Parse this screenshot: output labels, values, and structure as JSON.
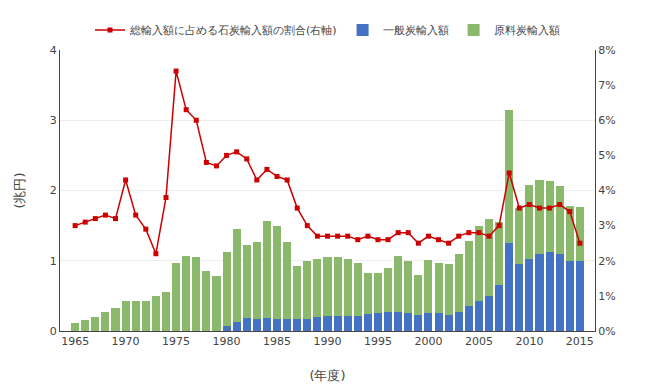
{
  "chart_data": {
    "type": "bar",
    "stacked": true,
    "xlabel": "(年度)",
    "ylabel": "(兆円)",
    "x": [
      1965,
      1966,
      1967,
      1968,
      1969,
      1970,
      1971,
      1972,
      1973,
      1974,
      1975,
      1976,
      1977,
      1978,
      1979,
      1980,
      1981,
      1982,
      1983,
      1984,
      1985,
      1986,
      1987,
      1988,
      1989,
      1990,
      1991,
      1992,
      1993,
      1994,
      1995,
      1996,
      1997,
      1998,
      1999,
      2000,
      2001,
      2002,
      2003,
      2004,
      2005,
      2006,
      2007,
      2008,
      2009,
      2010,
      2011,
      2012,
      2013,
      2014,
      2015
    ],
    "xlim": [
      1963.5,
      2016.5
    ],
    "xticks": [
      1965,
      1970,
      1975,
      1980,
      1985,
      1990,
      1995,
      2000,
      2005,
      2010,
      2015
    ],
    "ylim": [
      0,
      4
    ],
    "yticks": [
      0,
      1,
      2,
      3,
      4
    ],
    "y2lim": [
      0,
      8
    ],
    "y2ticks": [
      {
        "value": 0,
        "label": "0%"
      },
      {
        "value": 1,
        "label": "1%"
      },
      {
        "value": 2,
        "label": "2%"
      },
      {
        "value": 3,
        "label": "3%"
      },
      {
        "value": 4,
        "label": "4%"
      },
      {
        "value": 5,
        "label": "5%"
      },
      {
        "value": 6,
        "label": "6%"
      },
      {
        "value": 7,
        "label": "7%"
      },
      {
        "value": 8,
        "label": "8%"
      }
    ],
    "grid": true,
    "legend": "top",
    "series": [
      {
        "name": "一般炭輸入額",
        "type": "bar",
        "color": "#4472c4",
        "values": [
          0.0,
          0.0,
          0.0,
          0.0,
          0.0,
          0.0,
          0.0,
          0.0,
          0.0,
          0.0,
          0.0,
          0.0,
          0.0,
          0.0,
          0.0,
          0.07,
          0.13,
          0.18,
          0.17,
          0.18,
          0.17,
          0.17,
          0.17,
          0.17,
          0.2,
          0.21,
          0.22,
          0.22,
          0.22,
          0.24,
          0.25,
          0.27,
          0.27,
          0.25,
          0.23,
          0.25,
          0.25,
          0.23,
          0.27,
          0.35,
          0.43,
          0.5,
          0.65,
          1.25,
          0.95,
          1.03,
          1.1,
          1.13,
          1.1,
          1.0,
          1.0
        ]
      },
      {
        "name": "原料炭輸入額",
        "type": "bar",
        "color": "#8ab96b",
        "values": [
          0.12,
          0.15,
          0.2,
          0.27,
          0.33,
          0.43,
          0.43,
          0.43,
          0.5,
          0.56,
          0.97,
          1.07,
          1.06,
          0.85,
          0.78,
          1.05,
          1.32,
          1.05,
          1.1,
          1.38,
          1.33,
          1.1,
          0.75,
          0.82,
          0.82,
          0.85,
          0.83,
          0.8,
          0.75,
          0.58,
          0.57,
          0.63,
          0.8,
          0.75,
          0.57,
          0.76,
          0.72,
          0.72,
          0.82,
          0.93,
          1.07,
          1.1,
          0.9,
          1.9,
          0.8,
          1.05,
          1.05,
          1.0,
          0.97,
          0.78,
          0.77
        ]
      },
      {
        "name": "総輸入額に占める石炭輸入額の割合(右軸)",
        "type": "line",
        "color": "#cc0000",
        "marker": "square",
        "axis": "y2",
        "values": [
          3.0,
          3.1,
          3.2,
          3.3,
          3.2,
          4.3,
          3.3,
          2.9,
          2.2,
          3.8,
          7.4,
          6.3,
          6.0,
          4.8,
          4.7,
          5.0,
          5.1,
          4.9,
          4.3,
          4.6,
          4.4,
          4.3,
          3.5,
          3.0,
          2.7,
          2.7,
          2.7,
          2.7,
          2.6,
          2.7,
          2.6,
          2.6,
          2.8,
          2.8,
          2.5,
          2.7,
          2.6,
          2.5,
          2.7,
          2.8,
          2.8,
          2.7,
          3.0,
          4.5,
          3.5,
          3.6,
          3.5,
          3.5,
          3.6,
          3.4,
          2.5
        ]
      }
    ]
  }
}
